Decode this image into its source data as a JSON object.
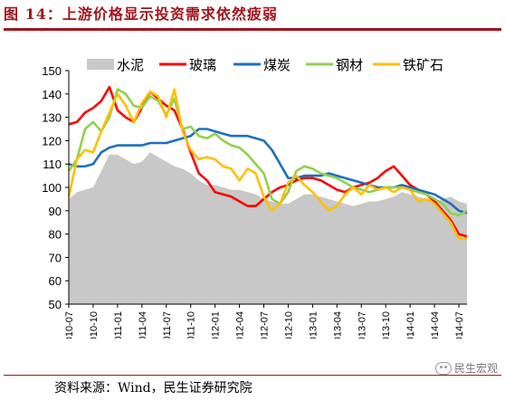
{
  "header": {
    "title": "图 14：上游价格显示投资需求依然疲弱"
  },
  "footer": {
    "source": "资料来源：Wind，民生证券研究院",
    "watermark": "民生宏观"
  },
  "colors": {
    "title": "#a2151c",
    "cement": "#c8c8c8",
    "glass": "#ff0000",
    "coal": "#1f6fbf",
    "steel": "#8fd14f",
    "iron": "#ffc000"
  },
  "chart_data": {
    "type": "line",
    "title": "",
    "ylim": [
      50,
      150
    ],
    "yticks": [
      50,
      60,
      70,
      80,
      90,
      100,
      110,
      120,
      130,
      140,
      150
    ],
    "xlim": [
      "2010-07",
      "2014-08"
    ],
    "xticks": [
      "2010-07",
      "2010-10",
      "2011-01",
      "2011-04",
      "2011-07",
      "2011-10",
      "2012-01",
      "2012-04",
      "2012-07",
      "2012-10",
      "2013-01",
      "2013-04",
      "2013-07",
      "2013-10",
      "2014-01",
      "2014-04",
      "2014-07"
    ],
    "legend_position": "top",
    "series": [
      {
        "name": "水泥",
        "type": "area",
        "color": "#c8c8c8",
        "x": [
          "2010-07",
          "2010-08",
          "2010-09",
          "2010-10",
          "2010-11",
          "2010-12",
          "2011-01",
          "2011-02",
          "2011-03",
          "2011-04",
          "2011-05",
          "2011-06",
          "2011-07",
          "2011-08",
          "2011-09",
          "2011-10",
          "2011-11",
          "2011-12",
          "2012-01",
          "2012-02",
          "2012-03",
          "2012-04",
          "2012-05",
          "2012-06",
          "2012-07",
          "2012-08",
          "2012-09",
          "2012-10",
          "2012-11",
          "2012-12",
          "2013-01",
          "2013-02",
          "2013-03",
          "2013-04",
          "2013-05",
          "2013-06",
          "2013-07",
          "2013-08",
          "2013-09",
          "2013-10",
          "2013-11",
          "2013-12",
          "2014-01",
          "2014-02",
          "2014-03",
          "2014-04",
          "2014-05",
          "2014-06",
          "2014-07",
          "2014-08"
        ],
        "values": [
          95,
          98,
          99,
          100,
          107,
          114,
          114,
          112,
          110,
          111,
          115,
          113,
          111,
          109,
          108,
          106,
          103,
          101,
          101,
          100,
          99,
          99,
          98,
          97,
          95,
          94,
          93,
          93,
          95,
          97,
          97,
          96,
          95,
          94,
          93,
          92,
          93,
          94,
          94,
          95,
          96,
          98,
          97,
          96,
          95,
          94,
          95,
          96,
          94,
          93
        ]
      },
      {
        "name": "玻璃",
        "type": "line",
        "color": "#ff0000",
        "x": [
          "2010-07",
          "2010-08",
          "2010-09",
          "2010-10",
          "2010-11",
          "2010-12",
          "2011-01",
          "2011-02",
          "2011-03",
          "2011-04",
          "2011-05",
          "2011-06",
          "2011-07",
          "2011-08",
          "2011-09",
          "2011-10",
          "2011-11",
          "2011-12",
          "2012-01",
          "2012-02",
          "2012-03",
          "2012-04",
          "2012-05",
          "2012-06",
          "2012-07",
          "2012-08",
          "2012-09",
          "2012-10",
          "2012-11",
          "2012-12",
          "2013-01",
          "2013-02",
          "2013-03",
          "2013-04",
          "2013-05",
          "2013-06",
          "2013-07",
          "2013-08",
          "2013-09",
          "2013-10",
          "2013-11",
          "2013-12",
          "2014-01",
          "2014-02",
          "2014-03",
          "2014-04",
          "2014-05",
          "2014-06",
          "2014-07",
          "2014-08"
        ],
        "values": [
          127,
          128,
          132,
          134,
          137,
          143,
          133,
          130,
          128,
          134,
          141,
          138,
          135,
          133,
          125,
          115,
          106,
          103,
          98,
          97,
          96,
          94,
          92,
          92,
          95,
          98,
          100,
          101,
          103,
          104,
          104,
          103,
          101,
          99,
          98,
          100,
          101,
          102,
          104,
          107,
          109,
          105,
          101,
          99,
          97,
          94,
          90,
          86,
          80,
          79
        ]
      },
      {
        "name": "煤炭",
        "type": "line",
        "color": "#1f6fbf",
        "x": [
          "2010-07",
          "2010-08",
          "2010-09",
          "2010-10",
          "2010-11",
          "2010-12",
          "2011-01",
          "2011-02",
          "2011-03",
          "2011-04",
          "2011-05",
          "2011-06",
          "2011-07",
          "2011-08",
          "2011-09",
          "2011-10",
          "2011-11",
          "2011-12",
          "2012-01",
          "2012-02",
          "2012-03",
          "2012-04",
          "2012-05",
          "2012-06",
          "2012-07",
          "2012-08",
          "2012-09",
          "2012-10",
          "2012-11",
          "2012-12",
          "2013-01",
          "2013-02",
          "2013-03",
          "2013-04",
          "2013-05",
          "2013-06",
          "2013-07",
          "2013-08",
          "2013-09",
          "2013-10",
          "2013-11",
          "2013-12",
          "2014-01",
          "2014-02",
          "2014-03",
          "2014-04",
          "2014-05",
          "2014-06",
          "2014-07",
          "2014-08"
        ],
        "values": [
          110,
          109,
          109,
          110,
          115,
          117,
          118,
          118,
          118,
          118,
          119,
          119,
          119,
          120,
          121,
          122,
          125,
          125,
          124,
          123,
          122,
          122,
          122,
          121,
          120,
          116,
          110,
          104,
          104,
          105,
          105,
          105,
          106,
          105,
          104,
          103,
          102,
          101,
          100,
          100,
          100,
          101,
          100,
          99,
          98,
          97,
          95,
          93,
          90,
          89
        ]
      },
      {
        "name": "钢材",
        "type": "line",
        "color": "#8fd14f",
        "x": [
          "2010-07",
          "2010-08",
          "2010-09",
          "2010-10",
          "2010-11",
          "2010-12",
          "2011-01",
          "2011-02",
          "2011-03",
          "2011-04",
          "2011-05",
          "2011-06",
          "2011-07",
          "2011-08",
          "2011-09",
          "2011-10",
          "2011-11",
          "2011-12",
          "2012-01",
          "2012-02",
          "2012-03",
          "2012-04",
          "2012-05",
          "2012-06",
          "2012-07",
          "2012-08",
          "2012-09",
          "2012-10",
          "2012-11",
          "2012-12",
          "2013-01",
          "2013-02",
          "2013-03",
          "2013-04",
          "2013-05",
          "2013-06",
          "2013-07",
          "2013-08",
          "2013-09",
          "2013-10",
          "2013-11",
          "2013-12",
          "2014-01",
          "2014-02",
          "2014-03",
          "2014-04",
          "2014-05",
          "2014-06",
          "2014-07",
          "2014-08"
        ],
        "values": [
          107,
          112,
          125,
          128,
          124,
          130,
          142,
          140,
          135,
          134,
          139,
          137,
          131,
          138,
          125,
          126,
          122,
          121,
          123,
          120,
          118,
          117,
          114,
          110,
          106,
          95,
          93,
          98,
          107,
          109,
          108,
          106,
          105,
          104,
          102,
          100,
          99,
          98,
          99,
          100,
          100,
          100,
          99,
          98,
          97,
          95,
          93,
          89,
          88,
          90
        ]
      },
      {
        "name": "铁矿石",
        "type": "line",
        "color": "#ffc000",
        "x": [
          "2010-07",
          "2010-08",
          "2010-09",
          "2010-10",
          "2010-11",
          "2010-12",
          "2011-01",
          "2011-02",
          "2011-03",
          "2011-04",
          "2011-05",
          "2011-06",
          "2011-07",
          "2011-08",
          "2011-09",
          "2011-10",
          "2011-11",
          "2011-12",
          "2012-01",
          "2012-02",
          "2012-03",
          "2012-04",
          "2012-05",
          "2012-06",
          "2012-07",
          "2012-08",
          "2012-09",
          "2012-10",
          "2012-11",
          "2012-12",
          "2013-01",
          "2013-02",
          "2013-03",
          "2013-04",
          "2013-05",
          "2013-06",
          "2013-07",
          "2013-08",
          "2013-09",
          "2013-10",
          "2013-11",
          "2013-12",
          "2014-01",
          "2014-02",
          "2014-03",
          "2014-04",
          "2014-05",
          "2014-06",
          "2014-07",
          "2014-08"
        ],
        "values": [
          96,
          112,
          116,
          115,
          124,
          132,
          140,
          135,
          128,
          136,
          141,
          139,
          130,
          142,
          124,
          116,
          112,
          113,
          112,
          109,
          108,
          103,
          108,
          106,
          96,
          90,
          93,
          102,
          105,
          101,
          98,
          94,
          90,
          92,
          97,
          100,
          97,
          101,
          99,
          100,
          98,
          100,
          99,
          94,
          95,
          93,
          89,
          85,
          78,
          78
        ]
      }
    ]
  }
}
